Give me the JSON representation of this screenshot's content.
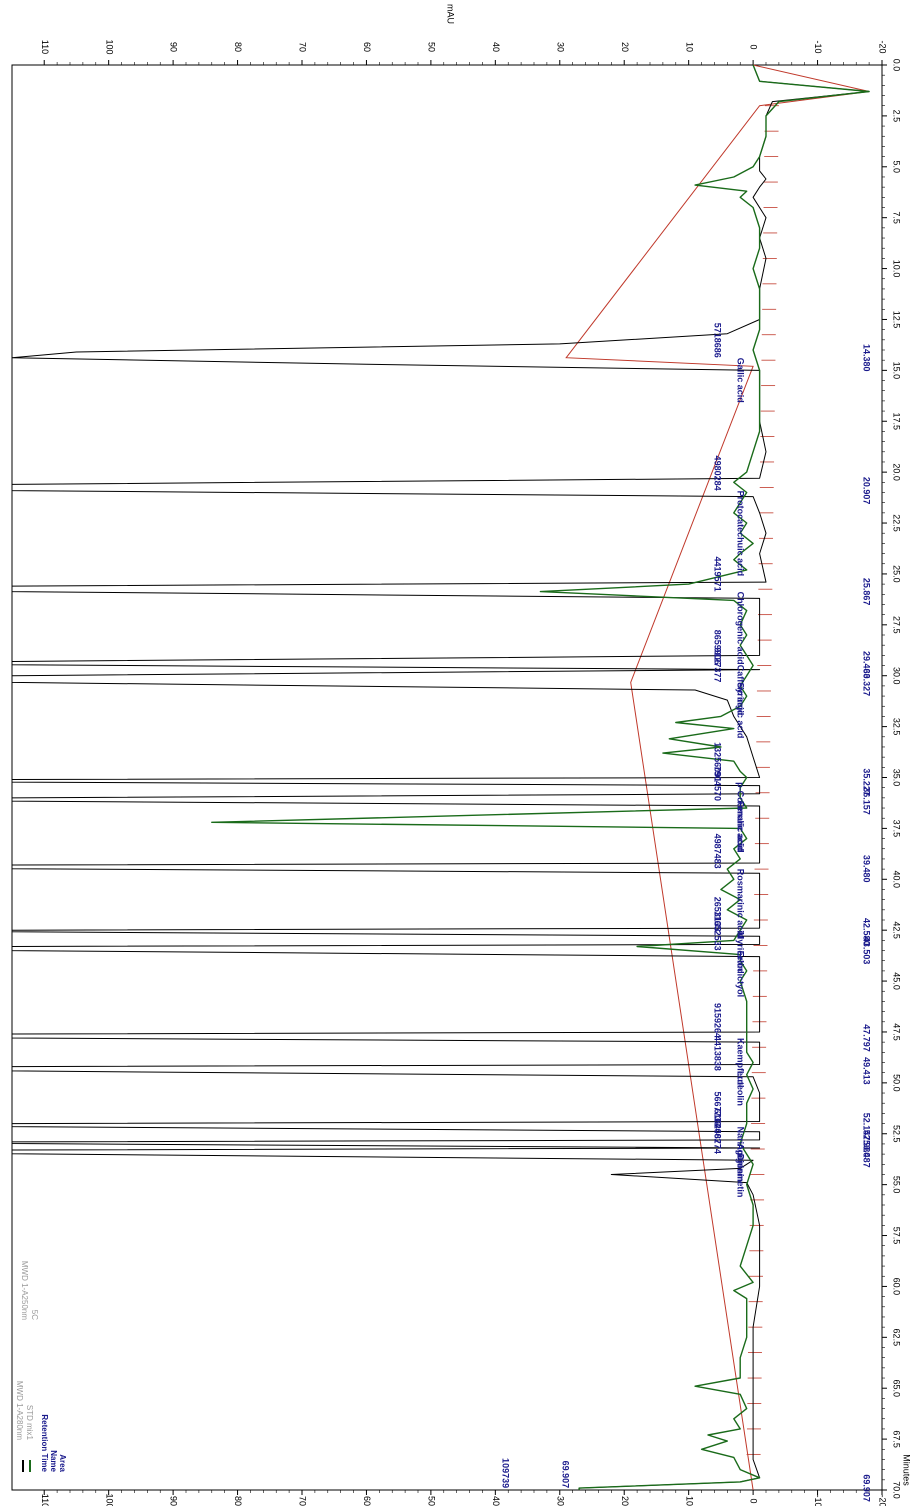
{
  "chart_data": {
    "type": "line",
    "title": "",
    "xlabel": "Minutes",
    "ylabel": "mAU",
    "xlim": [
      0.0,
      70.0
    ],
    "ylim": [
      -20,
      115
    ],
    "x_ticks": [
      "0.0",
      "2.5",
      "5.0",
      "7.5",
      "10.0",
      "12.5",
      "15.0",
      "17.5",
      "20.0",
      "22.5",
      "25.0",
      "27.5",
      "30.0",
      "32.5",
      "35.0",
      "37.5",
      "40.0",
      "42.5",
      "45.0",
      "47.5",
      "50.0",
      "52.5",
      "55.0",
      "57.5",
      "60.0",
      "62.5",
      "65.0",
      "67.5",
      "70.0"
    ],
    "y_ticks": [
      "-20",
      "-10",
      "0",
      "10",
      "20",
      "30",
      "40",
      "50",
      "60",
      "70",
      "80",
      "90",
      "100",
      "110"
    ],
    "legend": {
      "placement": "bottom-left",
      "entries": [
        {
          "label": "MWD 1-A280nm",
          "sub": "STD mix1",
          "color": "#000000"
        },
        {
          "label": "MWD 1-A250nm",
          "sub": "5C",
          "color": "#1a6b1a"
        }
      ],
      "peak_label_keys": [
        "Retention Time",
        "Name",
        "Area"
      ]
    },
    "series": [
      {
        "name": "MWD 1-A280nm",
        "color": "#000000",
        "points": [
          [
            0,
            0
          ],
          [
            0.8,
            -1
          ],
          [
            1.3,
            -18
          ],
          [
            1.8,
            -3
          ],
          [
            2.5,
            -2
          ],
          [
            3.5,
            -2
          ],
          [
            4.5,
            -1
          ],
          [
            5.2,
            -1
          ],
          [
            5.6,
            -2
          ],
          [
            6.0,
            -1
          ],
          [
            6.5,
            0
          ],
          [
            7.5,
            -2
          ],
          [
            8.5,
            -1
          ],
          [
            9.5,
            -2
          ],
          [
            11,
            -1
          ],
          [
            12.5,
            -1
          ],
          [
            13.2,
            4
          ],
          [
            13.7,
            30
          ],
          [
            14.1,
            105
          ],
          [
            14.38,
            120
          ],
          [
            14.7,
            60
          ],
          [
            15.0,
            -1
          ],
          [
            16,
            -1
          ],
          [
            17.5,
            -1
          ],
          [
            19,
            -2
          ],
          [
            20.3,
            -1
          ],
          [
            20.6,
            120
          ],
          [
            20.907,
            120
          ],
          [
            21.2,
            0
          ],
          [
            22,
            -1
          ],
          [
            23,
            -2
          ],
          [
            24,
            -1
          ],
          [
            25.4,
            -2
          ],
          [
            25.6,
            120
          ],
          [
            25.867,
            120
          ],
          [
            26.2,
            -1
          ],
          [
            27.5,
            -1
          ],
          [
            29.0,
            -1
          ],
          [
            29.3,
            120
          ],
          [
            29.463,
            120
          ],
          [
            29.7,
            -1
          ],
          [
            30.0,
            115
          ],
          [
            30.327,
            120
          ],
          [
            30.7,
            9
          ],
          [
            31.2,
            4
          ],
          [
            32,
            3
          ],
          [
            33,
            1
          ],
          [
            34,
            0
          ],
          [
            35.0,
            -1
          ],
          [
            35.1,
            120
          ],
          [
            35.227,
            120
          ],
          [
            35.4,
            -1
          ],
          [
            35.8,
            -1
          ],
          [
            36.0,
            120
          ],
          [
            36.157,
            120
          ],
          [
            36.4,
            -1
          ],
          [
            37,
            -1
          ],
          [
            39.2,
            -1
          ],
          [
            39.3,
            120
          ],
          [
            39.48,
            120
          ],
          [
            39.7,
            -1
          ],
          [
            41,
            -1
          ],
          [
            42.4,
            -1
          ],
          [
            42.5,
            120
          ],
          [
            42.58,
            120
          ],
          [
            42.8,
            -1
          ],
          [
            43.2,
            -1
          ],
          [
            43.3,
            120
          ],
          [
            43.503,
            120
          ],
          [
            43.8,
            -1
          ],
          [
            45,
            -1
          ],
          [
            47.5,
            -1
          ],
          [
            47.6,
            120
          ],
          [
            47.797,
            120
          ],
          [
            48,
            -1
          ],
          [
            49.1,
            -1
          ],
          [
            49.2,
            120
          ],
          [
            49.413,
            120
          ],
          [
            49.7,
            0
          ],
          [
            50.5,
            -1
          ],
          [
            51.9,
            -1
          ],
          [
            52.0,
            120
          ],
          [
            52.147,
            120
          ],
          [
            52.4,
            -1
          ],
          [
            52.8,
            -1
          ],
          [
            52.9,
            120
          ],
          [
            52.98,
            120
          ],
          [
            53.2,
            -1
          ],
          [
            53.3,
            120
          ],
          [
            53.487,
            120
          ],
          [
            53.8,
            0
          ],
          [
            54.2,
            2
          ],
          [
            54.5,
            22
          ],
          [
            54.9,
            1
          ],
          [
            55.5,
            0
          ],
          [
            57,
            -1
          ],
          [
            59,
            -1
          ],
          [
            60,
            -1
          ],
          [
            62,
            0
          ],
          [
            64,
            0
          ],
          [
            65.5,
            0
          ],
          [
            67,
            0
          ],
          [
            68.5,
            0
          ],
          [
            69.4,
            -1
          ],
          [
            69.6,
            2
          ],
          [
            69.907,
            27
          ],
          [
            70,
            27
          ]
        ]
      },
      {
        "name": "MWD 1-A250nm",
        "color": "#1a6b1a",
        "points": [
          [
            0,
            0
          ],
          [
            0.8,
            -1
          ],
          [
            1.3,
            -18
          ],
          [
            1.8,
            -4
          ],
          [
            2.5,
            -2
          ],
          [
            3.5,
            -2
          ],
          [
            4.5,
            -1
          ],
          [
            5.0,
            0
          ],
          [
            5.5,
            3
          ],
          [
            5.9,
            9
          ],
          [
            6.2,
            1
          ],
          [
            6.5,
            2
          ],
          [
            7,
            0
          ],
          [
            8,
            -1
          ],
          [
            9,
            -1
          ],
          [
            10,
            0
          ],
          [
            11,
            -1
          ],
          [
            12,
            -1
          ],
          [
            13,
            -1
          ],
          [
            14,
            0
          ],
          [
            15,
            -1
          ],
          [
            16,
            -1
          ],
          [
            17,
            -1
          ],
          [
            18,
            -1
          ],
          [
            19,
            0
          ],
          [
            20,
            1
          ],
          [
            20.5,
            3
          ],
          [
            21,
            1
          ],
          [
            21.5,
            2
          ],
          [
            22,
            3
          ],
          [
            22.5,
            1
          ],
          [
            23,
            2
          ],
          [
            23.5,
            0
          ],
          [
            24.0,
            2
          ],
          [
            24.3,
            3
          ],
          [
            24.8,
            1
          ],
          [
            25.5,
            10
          ],
          [
            25.867,
            33
          ],
          [
            26.3,
            3
          ],
          [
            26.8,
            1
          ],
          [
            27.5,
            2
          ],
          [
            28,
            1
          ],
          [
            28.5,
            2
          ],
          [
            29.0,
            1
          ],
          [
            29.5,
            0
          ],
          [
            30.0,
            1
          ],
          [
            30.5,
            2
          ],
          [
            31,
            1
          ],
          [
            31.5,
            2
          ],
          [
            32,
            5
          ],
          [
            32.3,
            12
          ],
          [
            32.6,
            3
          ],
          [
            33.1,
            13
          ],
          [
            33.5,
            5
          ],
          [
            33.8,
            14
          ],
          [
            34.2,
            3
          ],
          [
            34.7,
            2
          ],
          [
            35.0,
            1
          ],
          [
            35.5,
            2
          ],
          [
            36,
            2
          ],
          [
            36.5,
            1
          ],
          [
            37.2,
            84
          ],
          [
            37.5,
            2
          ],
          [
            38,
            1
          ],
          [
            38.5,
            3
          ],
          [
            39,
            2
          ],
          [
            39.5,
            4
          ],
          [
            40,
            3
          ],
          [
            40.5,
            5
          ],
          [
            41,
            2
          ],
          [
            41.5,
            4
          ],
          [
            42,
            1
          ],
          [
            42.5,
            2
          ],
          [
            43.0,
            3
          ],
          [
            43.3,
            18
          ],
          [
            43.7,
            2
          ],
          [
            44,
            2
          ],
          [
            44.5,
            1
          ],
          [
            45,
            2
          ],
          [
            46,
            1
          ],
          [
            46.5,
            1
          ],
          [
            47,
            1
          ],
          [
            48,
            1
          ],
          [
            48.5,
            1
          ],
          [
            49,
            0
          ],
          [
            49.6,
            1
          ],
          [
            50.3,
            0
          ],
          [
            51,
            1
          ],
          [
            52,
            1
          ],
          [
            53,
            2
          ],
          [
            54,
            0
          ],
          [
            55,
            1
          ],
          [
            56,
            0
          ],
          [
            57,
            0
          ],
          [
            58,
            1
          ],
          [
            59,
            2
          ],
          [
            59.8,
            0
          ],
          [
            60.2,
            3
          ],
          [
            60.6,
            1
          ],
          [
            61.5,
            1
          ],
          [
            62.5,
            1
          ],
          [
            63.5,
            2
          ],
          [
            64.5,
            2
          ],
          [
            64.9,
            9
          ],
          [
            65.3,
            2
          ],
          [
            66,
            1
          ],
          [
            66.5,
            3
          ],
          [
            67,
            2
          ],
          [
            67.3,
            7
          ],
          [
            67.6,
            4
          ],
          [
            68.0,
            8
          ],
          [
            68.4,
            3
          ],
          [
            69.0,
            2
          ],
          [
            69.4,
            -1
          ],
          [
            69.6,
            2
          ],
          [
            69.907,
            27
          ],
          [
            70,
            27
          ]
        ]
      }
    ],
    "baseline": {
      "color": "#c0392b",
      "points": [
        [
          0,
          0
        ],
        [
          1.3,
          -18
        ],
        [
          2.0,
          -1
        ],
        [
          14.38,
          29
        ],
        [
          14.8,
          0
        ],
        [
          30.327,
          19
        ],
        [
          70,
          0
        ]
      ]
    },
    "peaks": [
      {
        "rt": "14.380",
        "name": "Gallic acid",
        "area": "5718686"
      },
      {
        "rt": "20.907",
        "name": "Protocatechuic acid",
        "area": "4980284"
      },
      {
        "rt": "25.867",
        "name": "Chlorogenic acid",
        "area": "4419571"
      },
      {
        "rt": "29.463",
        "name": "Caffeic acid",
        "area": "8659906"
      },
      {
        "rt": "30.327",
        "name": "Syringic acid",
        "area": "9127377"
      },
      {
        "rt": "35.227",
        "name": "p-Coumaric acid",
        "area": "13256091"
      },
      {
        "rt": "36.157",
        "name": "Ferulic acid",
        "area": "7904570"
      },
      {
        "rt": "39.480",
        "name": "Rosmarinic acid",
        "area": "4987483"
      },
      {
        "rt": "42.580",
        "name": "Myricetin",
        "area": "2653133"
      },
      {
        "rt": "43.503",
        "name": "Eriodictyol",
        "area": "11652533"
      },
      {
        "rt": "47.797",
        "name": "Kaempferol",
        "area": "9159264"
      },
      {
        "rt": "49.413",
        "name": "Luteolin",
        "area": "4413838"
      },
      {
        "rt": "52.147",
        "name": "Naringenin",
        "area": "5667733"
      },
      {
        "rt": "52.980",
        "name": "Apigenin",
        "area": "6184062"
      },
      {
        "rt": "53.487",
        "name": "Diosmetin",
        "area": "6248774"
      },
      {
        "rt": "69.907",
        "name": "",
        "area": "109739"
      }
    ]
  }
}
